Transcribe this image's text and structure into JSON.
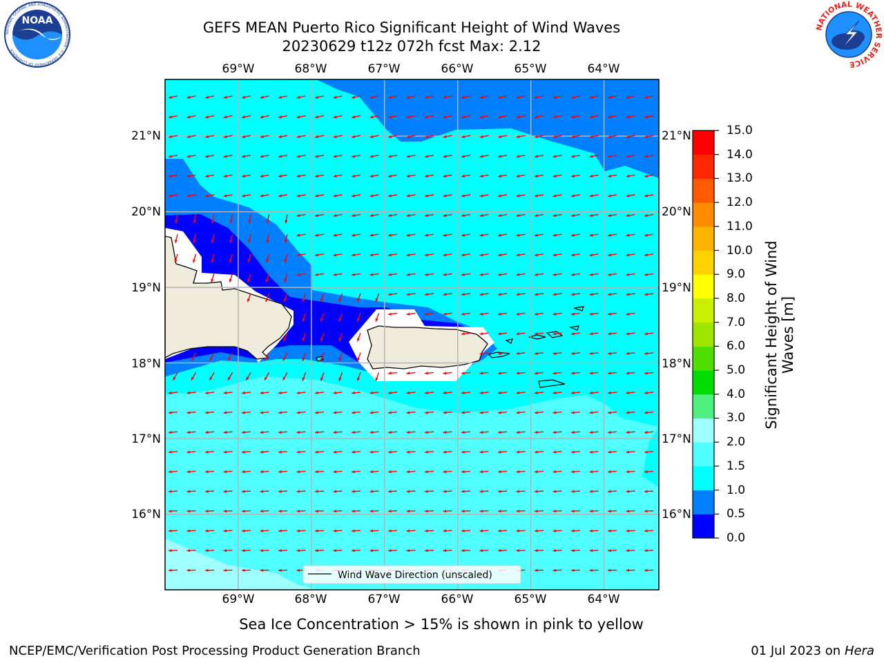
{
  "title": {
    "line1": "GEFS MEAN Puerto Rico Significant Height of Wind Waves",
    "line2": "20230629 t12z 072h fcst   Max: 2.12"
  },
  "logos": {
    "noaa_text": "NOAA",
    "noaa_ring_text": "NATIONAL OCEANIC AND ATMOSPHERIC ADMINISTRATION · U.S. DEPARTMENT OF COMMERCE",
    "nws_ring_text": "NATIONAL WEATHER SERVICE"
  },
  "map": {
    "lon_ticks": [
      "69°W",
      "68°W",
      "67°W",
      "66°W",
      "65°W",
      "64°W"
    ],
    "lat_ticks": [
      "21°N",
      "20°N",
      "19°N",
      "18°N",
      "17°N",
      "16°N"
    ],
    "lon_range": [
      -70.0,
      -63.25
    ],
    "lat_range": [
      15.0,
      21.75
    ],
    "arrow_direction": "toward west-southwest",
    "arrow_color": "#ff0000",
    "grid": true,
    "legend": {
      "label": "Wind Wave Direction (unscaled)",
      "placement": "bottom-center"
    }
  },
  "colorbar": {
    "label": "Significant Height of Wind Waves [m]",
    "ticks": [
      "0.0",
      "0.5",
      "1.0",
      "1.5",
      "2.0",
      "3.0",
      "4.0",
      "5.0",
      "6.0",
      "7.0",
      "8.0",
      "9.0",
      "10.0",
      "11.0",
      "12.0",
      "13.0",
      "14.0",
      "15.0"
    ],
    "colors": [
      "#0000ff",
      "#0080ff",
      "#00ffff",
      "#50ffff",
      "#a0ffff",
      "#50f080",
      "#00dc00",
      "#50e000",
      "#a0e600",
      "#c8f000",
      "#ffff00",
      "#ffd200",
      "#ffb400",
      "#ff8c00",
      "#ff5a00",
      "#ff2800",
      "#ff0000"
    ]
  },
  "caption": "Sea Ice Concentration > 15% is shown in pink to yellow",
  "footer": {
    "left": "NCEP/EMC/Verification Post Processing Product Generation Branch",
    "right_prefix": "01 Jul 2023 on ",
    "right_host": "Hera"
  }
}
